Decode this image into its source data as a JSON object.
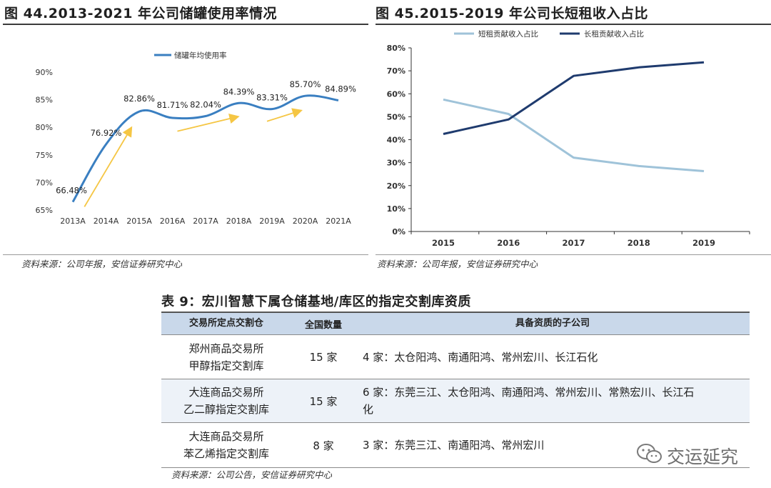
{
  "chart_data": [
    {
      "type": "line",
      "title": "图 44.2013-2021 年公司储罐使用率情况",
      "categories": [
        "2013A",
        "2014A",
        "2015A",
        "2016A",
        "2017A",
        "2018A",
        "2019A",
        "2020A",
        "2021A"
      ],
      "series": [
        {
          "name": "储罐年均使用率",
          "color": "#3a7fc1",
          "values": [
            66.48,
            76.92,
            82.86,
            81.71,
            82.04,
            84.39,
            83.31,
            85.7,
            84.89
          ],
          "labels": [
            "66.48%",
            "76.92%",
            "82.86%",
            "81.71%",
            "82.04%",
            "84.39%",
            "83.31%",
            "85.70%",
            "84.89%"
          ]
        }
      ],
      "ylim": [
        65,
        90
      ],
      "yticks": [
        "65%",
        "70%",
        "75%",
        "80%",
        "85%",
        "90%"
      ],
      "xlabel": "",
      "ylabel": "",
      "legend": "top-center",
      "grid": false,
      "annotations": "three yellow trend arrows pointing upward",
      "arrow_color": "#f5c644",
      "source": "资料来源：公司年报，安信证券研究中心"
    },
    {
      "type": "line",
      "title": "图 45.2015-2019 年公司长短租收入占比",
      "categories": [
        "2015",
        "2016",
        "2017",
        "2018",
        "2019"
      ],
      "series": [
        {
          "name": "短租贡献收入占比",
          "color": "#9fc3d9",
          "values": [
            57.5,
            51.2,
            32.2,
            28.5,
            26.3
          ]
        },
        {
          "name": "长租贡献收入占比",
          "color": "#1f3b6e",
          "values": [
            42.5,
            48.8,
            67.8,
            71.5,
            73.7
          ]
        }
      ],
      "ylim": [
        0,
        80
      ],
      "yticks": [
        "0%",
        "10%",
        "20%",
        "30%",
        "40%",
        "50%",
        "60%",
        "70%",
        "80%"
      ],
      "xlabel": "",
      "ylabel": "",
      "legend": "top-center",
      "grid": false,
      "source": "资料来源：公司年报，安信证券研究中心"
    }
  ],
  "table": {
    "title": "表 9：宏川智慧下属仓储基地/库区的指定交割库资质",
    "headers": [
      "交易所定点交割仓",
      "全国数量",
      "具备资质的子公司"
    ],
    "rows": [
      {
        "name_line1": "郑州商品交易所",
        "name_line2": "甲醇指定交割库",
        "count": "15 家",
        "companies_line1": "4 家：太仓阳鸿、南通阳鸿、常州宏川、长江石化",
        "companies_line2": ""
      },
      {
        "name_line1": "大连商品交易所",
        "name_line2": "乙二醇指定交割库",
        "count": "15 家",
        "companies_line1": "6 家：东莞三江、太仓阳鸿、南通阳鸿、常州宏川、常熟宏川、长江石",
        "companies_line2": "化"
      },
      {
        "name_line1": "大连商品交易所",
        "name_line2": "苯乙烯指定交割库",
        "count": "8 家",
        "companies_line1": "3 家：东莞三江、南通阳鸿、常州宏川",
        "companies_line2": ""
      }
    ],
    "source": "资料来源：公司公告，安信证券研究中心"
  },
  "watermark": {
    "text": "交运延究",
    "icon": "wechat-icon"
  }
}
